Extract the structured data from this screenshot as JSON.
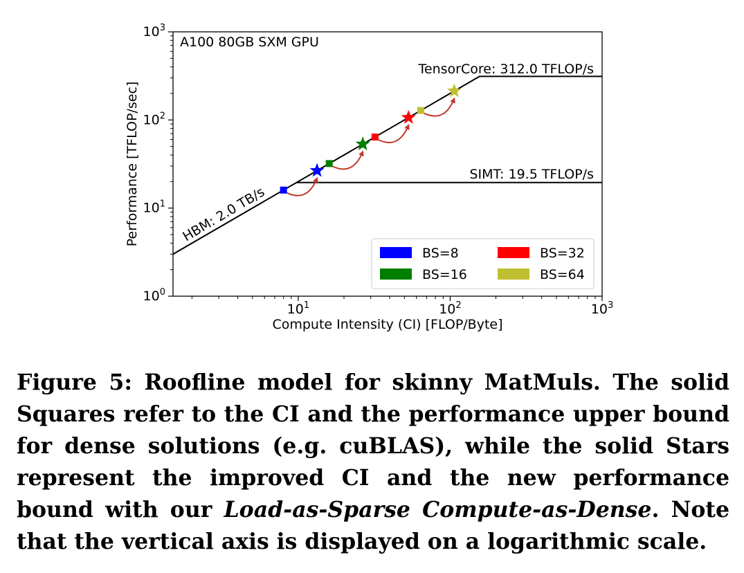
{
  "chart_data": {
    "type": "line",
    "subtitle": "A100 80GB SXM GPU",
    "xlabel": "Compute Intensity (CI) [FLOP/Byte]",
    "ylabel": "Performance [TFLOP/sec]",
    "xscale": "log",
    "yscale": "log",
    "xlim": [
      1.5,
      1000
    ],
    "ylim": [
      1,
      1000
    ],
    "x_ticks": [
      {
        "value": 10,
        "base": "10",
        "exp": "1"
      },
      {
        "value": 100,
        "base": "10",
        "exp": "2"
      },
      {
        "value": 1000,
        "base": "10",
        "exp": "3"
      }
    ],
    "y_ticks": [
      {
        "value": 1,
        "base": "10",
        "exp": "0"
      },
      {
        "value": 10,
        "base": "10",
        "exp": "1"
      },
      {
        "value": 100,
        "base": "10",
        "exp": "2"
      },
      {
        "value": 1000,
        "base": "10",
        "exp": "3"
      }
    ],
    "roofline": {
      "memory_bandwidth_TBps": 2.0,
      "memory_label": "HBM: 2.0 TB/s",
      "tensorcore_peak": 312.0,
      "tensorcore_label": "TensorCore: 312.0 TFLOP/s",
      "simt_peak": 19.5,
      "simt_label": "SIMT: 19.5 TFLOP/s"
    },
    "series": [
      {
        "name": "BS=8",
        "color": "#0000ff",
        "square": {
          "x": 8,
          "y": 16
        },
        "star": {
          "x": 13.3,
          "y": 26.6
        }
      },
      {
        "name": "BS=16",
        "color": "#007f00",
        "square": {
          "x": 16,
          "y": 32
        },
        "star": {
          "x": 26.6,
          "y": 53.2
        }
      },
      {
        "name": "BS=32",
        "color": "#ff0000",
        "square": {
          "x": 32,
          "y": 64
        },
        "star": {
          "x": 53.2,
          "y": 106.4
        }
      },
      {
        "name": "BS=64",
        "color": "#bfbf2f",
        "square": {
          "x": 64,
          "y": 128
        },
        "star": {
          "x": 106.4,
          "y": 212.8
        }
      }
    ],
    "legend_position": "lower-right"
  },
  "caption": {
    "part1": "Figure 5: Roofline model for skinny MatMuls. The solid Squares refer to the CI and the performance upper bound for dense solutions (e.g. cuBLAS), while the solid Stars represent the improved CI and the new performance bound with our ",
    "italic": "Load-as-Sparse Compute-as-Dense",
    "part2": ". Note that the vertical axis is displayed on a logarithmic scale."
  }
}
